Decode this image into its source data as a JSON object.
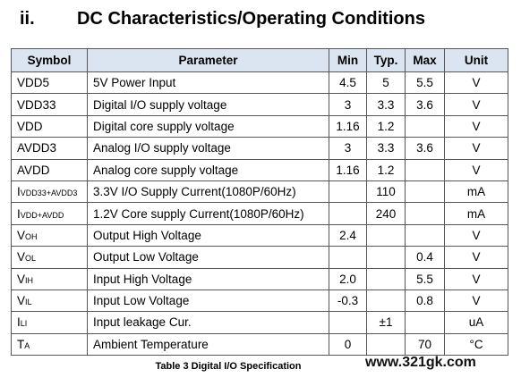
{
  "heading": {
    "number": "ii.",
    "title": "DC Characteristics/Operating Conditions"
  },
  "table": {
    "columns": [
      "Symbol",
      "Parameter",
      "Min",
      "Typ.",
      "Max",
      "Unit"
    ],
    "rows": [
      {
        "sym_main": "VDD5",
        "sym_sub": "",
        "parameter": "5V Power Input",
        "min": "4.5",
        "typ": "5",
        "max": "5.5",
        "unit": "V"
      },
      {
        "sym_main": "VDD33",
        "sym_sub": "",
        "parameter": "Digital I/O supply voltage",
        "min": "3",
        "typ": "3.3",
        "max": "3.6",
        "unit": "V"
      },
      {
        "sym_main": "VDD",
        "sym_sub": "",
        "parameter": "Digital core supply voltage",
        "min": "1.16",
        "typ": "1.2",
        "max": "",
        "unit": "V"
      },
      {
        "sym_main": "AVDD3",
        "sym_sub": "",
        "parameter": "Analog I/O supply voltage",
        "min": "3",
        "typ": "3.3",
        "max": "3.6",
        "unit": "V"
      },
      {
        "sym_main": "AVDD",
        "sym_sub": "",
        "parameter": "Analog core supply voltage",
        "min": "1.16",
        "typ": "1.2",
        "max": "",
        "unit": "V"
      },
      {
        "sym_main": "I",
        "sym_sub": "VDD33+AVDD3",
        "parameter": "3.3V I/O Supply Current(1080P/60Hz)",
        "min": "",
        "typ": "110",
        "max": "",
        "unit": "mA"
      },
      {
        "sym_main": "I",
        "sym_sub": "VDD+AVDD",
        "parameter": "1.2V Core supply Current(1080P/60Hz)",
        "min": "",
        "typ": "240",
        "max": "",
        "unit": "mA"
      },
      {
        "sym_main": "V",
        "sym_sub": "OH",
        "parameter": "Output High Voltage",
        "min": "2.4",
        "typ": "",
        "max": "",
        "unit": "V"
      },
      {
        "sym_main": "V",
        "sym_sub": "OL",
        "parameter": "Output Low Voltage",
        "min": "",
        "typ": "",
        "max": "0.4",
        "unit": "V"
      },
      {
        "sym_main": "V",
        "sym_sub": "IH",
        "parameter": "Input High Voltage",
        "min": "2.0",
        "typ": "",
        "max": "5.5",
        "unit": "V"
      },
      {
        "sym_main": "V",
        "sym_sub": "IL",
        "parameter": "Input Low Voltage",
        "min": "-0.3",
        "typ": "",
        "max": "0.8",
        "unit": "V"
      },
      {
        "sym_main": "I",
        "sym_sub": "LI",
        "parameter": "Input leakage Cur.",
        "min": "",
        "typ": "±1",
        "max": "",
        "unit": "uA"
      },
      {
        "sym_main": "T",
        "sym_sub": "A",
        "parameter": "Ambient Temperature",
        "min": "0",
        "typ": "",
        "max": "70",
        "unit": "°C"
      }
    ]
  },
  "caption": "Table 3 Digital I/O Specification",
  "watermark": "www.321gk.com",
  "colors": {
    "header_bg": "#dbe5f1",
    "border": "#555555"
  }
}
